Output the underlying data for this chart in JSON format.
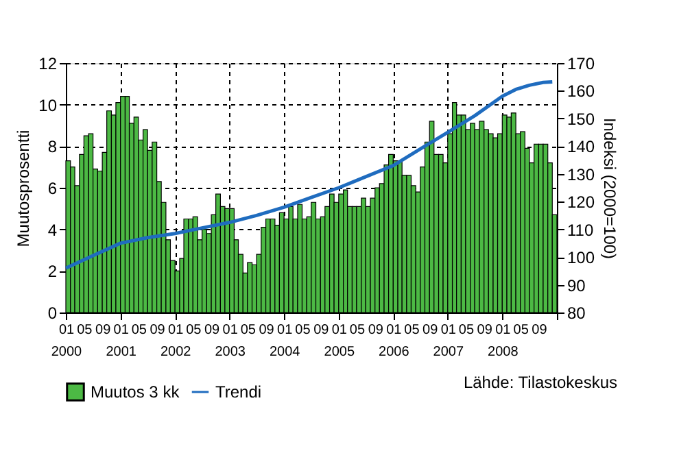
{
  "chart_data": {
    "type": "bar",
    "ylabel": "Muutosprosentti",
    "y2label": "Indeksi (2000=100)",
    "annotations": [
      "Lähde: Tilastokeskus"
    ],
    "x": [
      "2000-01",
      "2000-02",
      "2000-03",
      "2000-04",
      "2000-05",
      "2000-06",
      "2000-07",
      "2000-08",
      "2000-09",
      "2000-10",
      "2000-11",
      "2000-12",
      "2001-01",
      "2001-02",
      "2001-03",
      "2001-04",
      "2001-05",
      "2001-06",
      "2001-07",
      "2001-08",
      "2001-09",
      "2001-10",
      "2001-11",
      "2001-12",
      "2002-01",
      "2002-02",
      "2002-03",
      "2002-04",
      "2002-05",
      "2002-06",
      "2002-07",
      "2002-08",
      "2002-09",
      "2002-10",
      "2002-11",
      "2002-12",
      "2003-01",
      "2003-02",
      "2003-03",
      "2003-04",
      "2003-05",
      "2003-06",
      "2003-07",
      "2003-08",
      "2003-09",
      "2003-10",
      "2003-11",
      "2003-12",
      "2004-01",
      "2004-02",
      "2004-03",
      "2004-04",
      "2004-05",
      "2004-06",
      "2004-07",
      "2004-08",
      "2004-09",
      "2004-10",
      "2004-11",
      "2004-12",
      "2005-01",
      "2005-02",
      "2005-03",
      "2005-04",
      "2005-05",
      "2005-06",
      "2005-07",
      "2005-08",
      "2005-09",
      "2005-10",
      "2005-11",
      "2005-12",
      "2006-01",
      "2006-02",
      "2006-03",
      "2006-04",
      "2006-05",
      "2006-06",
      "2006-07",
      "2006-08",
      "2006-09",
      "2006-10",
      "2006-11",
      "2006-12",
      "2007-01",
      "2007-02",
      "2007-03",
      "2007-04",
      "2007-05",
      "2007-06",
      "2007-07",
      "2007-08",
      "2007-09",
      "2007-10",
      "2007-11",
      "2007-12",
      "2008-01",
      "2008-02",
      "2008-03",
      "2008-04",
      "2008-05",
      "2008-06",
      "2008-07",
      "2008-08",
      "2008-09",
      "2008-10",
      "2008-11",
      "2008-12"
    ],
    "series": [
      {
        "name": "Muutos 3 kk",
        "color": "#4cb944",
        "values": [
          7.3,
          7.0,
          6.1,
          7.6,
          8.5,
          8.6,
          6.9,
          6.8,
          7.7,
          9.7,
          9.5,
          10.1,
          10.4,
          10.4,
          9.1,
          9.4,
          8.3,
          8.8,
          7.8,
          8.2,
          6.3,
          5.3,
          3.5,
          2.5,
          2.0,
          2.6,
          4.5,
          4.5,
          4.6,
          3.5,
          4.0,
          3.8,
          4.7,
          5.7,
          5.1,
          5.0,
          5.0,
          3.5,
          2.8,
          1.9,
          2.4,
          2.3,
          2.8,
          4.1,
          4.5,
          4.5,
          4.2,
          4.8,
          4.5,
          5.1,
          4.5,
          5.2,
          4.5,
          4.6,
          5.3,
          4.5,
          4.6,
          5.1,
          5.7,
          5.3,
          5.7,
          5.9,
          5.1,
          5.1,
          5.1,
          5.5,
          5.1,
          5.5,
          6.0,
          6.2,
          7.1,
          7.6,
          7.3,
          7.3,
          6.6,
          6.6,
          6.1,
          5.8,
          7.0,
          8.2,
          9.2,
          7.6,
          7.6,
          7.2,
          8.6,
          10.1,
          9.5,
          9.5,
          8.8,
          9.1,
          8.8,
          9.2,
          8.8,
          8.6,
          8.4,
          8.6,
          9.5,
          9.4,
          9.6,
          8.6,
          8.7,
          7.9,
          7.2,
          8.1,
          8.1,
          8.1,
          7.2,
          4.7
        ]
      },
      {
        "name": "Trendi",
        "type": "line",
        "axis": "y2",
        "color": "#1f6cbf",
        "x": [
          "2000-01",
          "2000-07",
          "2001-01",
          "2001-07",
          "2002-01",
          "2002-07",
          "2003-01",
          "2003-07",
          "2004-01",
          "2004-07",
          "2005-01",
          "2005-07",
          "2006-01",
          "2006-07",
          "2007-01",
          "2007-07",
          "2008-01",
          "2008-04",
          "2008-07",
          "2008-10",
          "2008-12"
        ],
        "values": [
          96,
          100.5,
          105,
          107,
          108.5,
          110.5,
          112.5,
          115,
          118,
          121.5,
          125,
          129,
          133,
          139,
          145,
          151,
          158,
          160.5,
          162,
          163,
          163.2
        ]
      }
    ],
    "xlim": [
      "2000-01",
      "2009-01"
    ],
    "xticks": [
      {
        "value": "2000-01",
        "label": "01\n2000"
      },
      {
        "value": "2000-05",
        "label": "05"
      },
      {
        "value": "2000-09",
        "label": "09"
      },
      {
        "value": "2001-01",
        "label": "01\n2001"
      },
      {
        "value": "2001-05",
        "label": "05"
      },
      {
        "value": "2001-09",
        "label": "09"
      },
      {
        "value": "2002-01",
        "label": "01\n2002"
      },
      {
        "value": "2002-05",
        "label": "05"
      },
      {
        "value": "2002-09",
        "label": "09"
      },
      {
        "value": "2003-01",
        "label": "01\n2003"
      },
      {
        "value": "2003-05",
        "label": "05"
      },
      {
        "value": "2003-09",
        "label": "09"
      },
      {
        "value": "2004-01",
        "label": "01\n2004"
      },
      {
        "value": "2004-05",
        "label": "05"
      },
      {
        "value": "2004-09",
        "label": "09"
      },
      {
        "value": "2005-01",
        "label": "01\n2005"
      },
      {
        "value": "2005-05",
        "label": "05"
      },
      {
        "value": "2005-09",
        "label": "09"
      },
      {
        "value": "2006-01",
        "label": "01\n2006"
      },
      {
        "value": "2006-05",
        "label": "05"
      },
      {
        "value": "2006-09",
        "label": "09"
      },
      {
        "value": "2007-01",
        "label": "01\n2007"
      },
      {
        "value": "2007-05",
        "label": "05"
      },
      {
        "value": "2007-09",
        "label": "09"
      },
      {
        "value": "2008-01",
        "label": "01\n2008"
      },
      {
        "value": "2008-05",
        "label": "05"
      },
      {
        "value": "2008-09",
        "label": "09"
      },
      {
        "value": "2009-01",
        "label": null
      }
    ],
    "ylim": [
      0,
      12
    ],
    "yticks": [
      0,
      2,
      4,
      6,
      8,
      10,
      12
    ],
    "y2lim": [
      80,
      170
    ],
    "y2ticks": [
      80,
      90,
      100,
      110,
      120,
      130,
      140,
      150,
      160,
      170
    ],
    "grid": true,
    "legend": "bottom"
  }
}
